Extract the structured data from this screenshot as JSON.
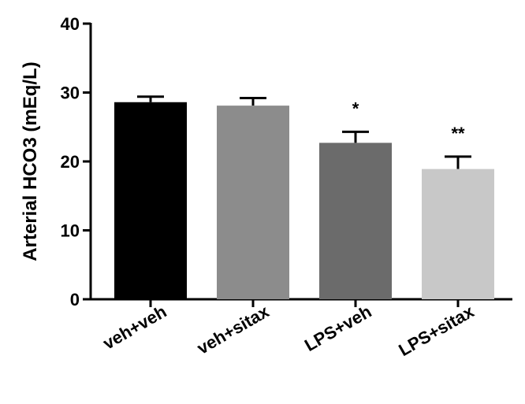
{
  "chart_data": {
    "type": "bar",
    "title": "",
    "xlabel": "",
    "ylabel": "Arterial HCO3 (mEq/L)",
    "ylim": [
      0,
      40
    ],
    "yticks": [
      0,
      10,
      20,
      30,
      40
    ],
    "grid": false,
    "legend": "none",
    "categories": [
      "veh+veh",
      "veh+sitax",
      "LPS+veh",
      "LPS+sitax"
    ],
    "values": [
      28.6,
      28.1,
      22.7,
      18.9
    ],
    "errors": [
      0.8,
      1.1,
      1.6,
      1.8
    ],
    "significance": [
      "",
      "",
      "*",
      "**"
    ],
    "colors": [
      "#000000",
      "#8c8c8c",
      "#6b6b6b",
      "#c8c8c8"
    ]
  }
}
